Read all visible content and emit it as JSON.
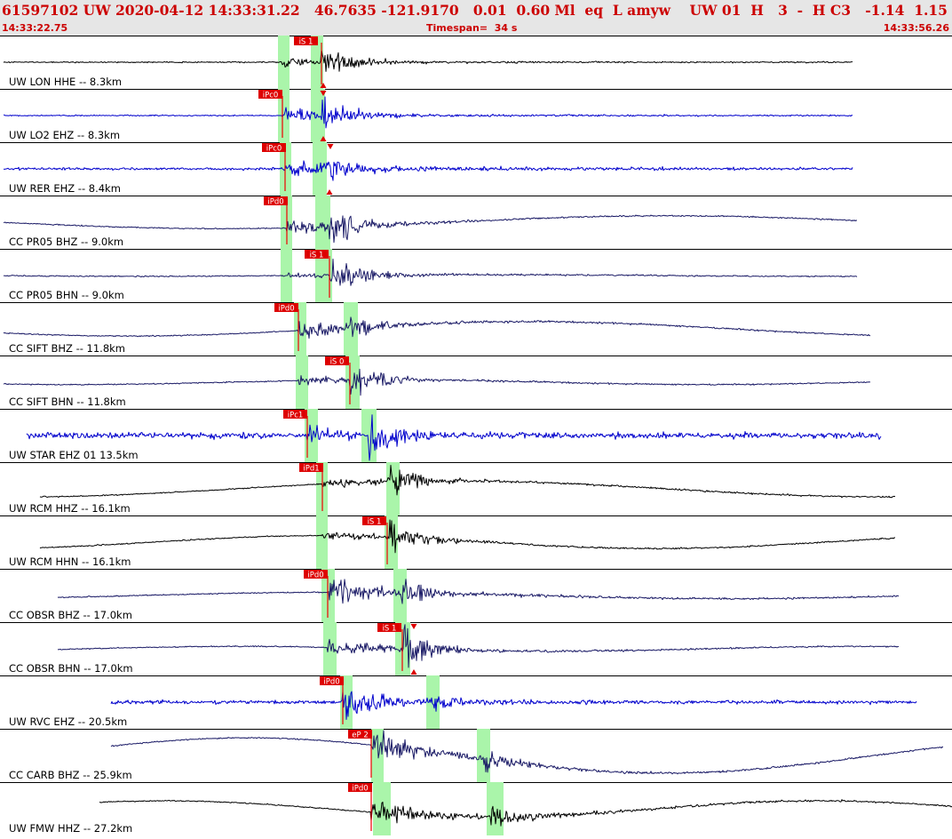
{
  "header": {
    "event_line": "61597102 UW 2020-04-12 14:33:31.22   46.7635 -121.9170   0.01  0.60 Ml  eq  L amyw    UW 01  H   3  -  H C3   -1.14  1.15",
    "start_time": "14:33:22.75",
    "timespan": "Timespan=  34 s",
    "end_time": "14:33:56.26"
  },
  "colors": {
    "panel_bg": "#ffffff",
    "header_bg": "#e6e6e6",
    "header_text": "#cc0000",
    "pick_box": "#dd0000",
    "pick_label": "#ffffff",
    "pick_line": "#ee0000",
    "window": "#aaf5aa",
    "black_trace": "#000000",
    "blue_trace": "#0000cc",
    "navy_trace": "#1a1a66"
  },
  "traces": [
    {
      "label": "UW LON HHE -- 8.3km",
      "color": "black",
      "picks": [
        {
          "text": "iS 1",
          "x": 362,
          "box": 331
        }
      ],
      "windows": [
        [
          313,
          326
        ],
        [
          350,
          364
        ]
      ],
      "marker": [
        {
          "x": 364,
          "dir": "up"
        }
      ],
      "start": 4,
      "end": 960,
      "onset": 318,
      "amp": 6,
      "pamp": 6,
      "samp": 20,
      "noise": 1,
      "lf": 0,
      "sx": 362
    },
    {
      "label": "UW LO2 EHZ -- 8.3km",
      "color": "blue",
      "picks": [
        {
          "text": "iPc0",
          "x": 318,
          "box": 291
        }
      ],
      "windows": [
        [
          313,
          326
        ],
        [
          350,
          366
        ]
      ],
      "marker": [
        {
          "x": 364,
          "dir": "down"
        },
        {
          "x": 364,
          "dir": "up"
        }
      ],
      "start": 4,
      "end": 960,
      "onset": 318,
      "amp": 8,
      "pamp": 8,
      "samp": 18,
      "noise": 1,
      "lf": 0,
      "sx": 363
    },
    {
      "label": "UW RER EHZ -- 8.4km",
      "color": "blue",
      "picks": [
        {
          "text": "iPc0",
          "x": 321,
          "box": 295
        }
      ],
      "windows": [
        [
          315,
          328
        ],
        [
          352,
          368
        ]
      ],
      "marker": [
        {
          "x": 372,
          "dir": "down"
        },
        {
          "x": 371,
          "dir": "up"
        }
      ],
      "start": 4,
      "end": 960,
      "onset": 321,
      "amp": 12,
      "pamp": 10,
      "samp": 16,
      "noise": 2,
      "lf": 0,
      "sx": 368
    },
    {
      "label": "CC PR05 BHZ -- 9.0km",
      "color": "navy",
      "picks": [
        {
          "text": "iPd0",
          "x": 323,
          "box": 297
        }
      ],
      "windows": [
        [
          316,
          329
        ],
        [
          355,
          372
        ]
      ],
      "marker": [],
      "start": 4,
      "end": 965,
      "onset": 323,
      "amp": 6,
      "pamp": 10,
      "samp": 25,
      "noise": 1,
      "lf": 8,
      "sx": 371
    },
    {
      "label": "CC PR05 BHN -- 9.0km",
      "color": "navy",
      "picks": [
        {
          "text": "iS 1",
          "x": 371,
          "box": 343
        }
      ],
      "windows": [
        [
          316,
          329
        ],
        [
          355,
          374
        ]
      ],
      "marker": [],
      "start": 4,
      "end": 965,
      "onset": 323,
      "amp": 6,
      "pamp": 4,
      "samp": 26,
      "noise": 1,
      "lf": 1,
      "sx": 372
    },
    {
      "label": "CC SIFT BHZ -- 11.8km",
      "color": "navy",
      "picks": [
        {
          "text": "iPd0",
          "x": 336,
          "box": 309
        }
      ],
      "windows": [
        [
          331,
          345
        ],
        [
          387,
          403
        ]
      ],
      "marker": [],
      "start": 4,
      "end": 980,
      "onset": 336,
      "amp": 8,
      "pamp": 12,
      "samp": 14,
      "noise": 1,
      "lf": 9,
      "sx": 395
    },
    {
      "label": "CC SIFT BHN -- 11.8km",
      "color": "navy",
      "picks": [
        {
          "text": "iS 0",
          "x": 394,
          "box": 366
        }
      ],
      "windows": [
        [
          333,
          347
        ],
        [
          389,
          405
        ]
      ],
      "marker": [],
      "start": 4,
      "end": 980,
      "onset": 336,
      "amp": 6,
      "pamp": 6,
      "samp": 22,
      "noise": 1,
      "lf": 3,
      "sx": 394
    },
    {
      "label": "UW STAR EHZ 01 13.5km",
      "color": "blue",
      "picks": [
        {
          "text": "iPc1",
          "x": 346,
          "box": 319
        }
      ],
      "windows": [
        [
          343,
          358
        ],
        [
          407,
          424
        ]
      ],
      "marker": [],
      "start": 30,
      "end": 992,
      "onset": 346,
      "amp": 10,
      "pamp": 8,
      "samp": 24,
      "noise": 5,
      "lf": 0,
      "sx": 415
    },
    {
      "label": "UW RCM HHZ -- 16.1km",
      "color": "black",
      "picks": [
        {
          "text": "iPd1",
          "x": 363,
          "box": 337
        }
      ],
      "windows": [
        [
          356,
          369
        ],
        [
          435,
          450
        ]
      ],
      "marker": [],
      "start": 45,
      "end": 1008,
      "onset": 363,
      "amp": 8,
      "pamp": 10,
      "samp": 20,
      "noise": 1,
      "lf": 10,
      "sx": 440
    },
    {
      "label": "UW RCM HHN -- 16.1km",
      "color": "black",
      "picks": [
        {
          "text": "iS 1",
          "x": 436,
          "box": 408
        }
      ],
      "windows": [
        [
          356,
          369
        ],
        [
          433,
          448
        ]
      ],
      "marker": [],
      "start": 45,
      "end": 1008,
      "onset": 363,
      "amp": 6,
      "pamp": 6,
      "samp": 20,
      "noise": 1,
      "lf": 8,
      "sx": 438
    },
    {
      "label": "CC OBSR BHZ -- 17.0km",
      "color": "navy",
      "picks": [
        {
          "text": "iPd0",
          "x": 369,
          "box": 342
        }
      ],
      "windows": [
        [
          362,
          377
        ],
        [
          443,
          458
        ]
      ],
      "marker": [],
      "start": 65,
      "end": 1012,
      "onset": 369,
      "amp": 10,
      "pamp": 18,
      "samp": 20,
      "noise": 1,
      "lf": 4,
      "sx": 452
    },
    {
      "label": "CC OBSR BHN -- 17.0km",
      "color": "navy",
      "picks": [
        {
          "text": "iS 1",
          "x": 453,
          "box": 425
        }
      ],
      "windows": [
        [
          364,
          379
        ],
        [
          445,
          462
        ]
      ],
      "marker": [
        {
          "x": 466,
          "dir": "down"
        },
        {
          "x": 466,
          "dir": "up"
        }
      ],
      "start": 65,
      "end": 1012,
      "onset": 369,
      "amp": 8,
      "pamp": 12,
      "samp": 24,
      "noise": 1,
      "lf": 3,
      "sx": 455
    },
    {
      "label": "UW RVC EHZ -- 20.5km",
      "color": "blue",
      "picks": [
        {
          "text": "iPd0",
          "x": 386,
          "box": 360
        }
      ],
      "windows": [
        [
          383,
          397
        ],
        [
          480,
          495
        ]
      ],
      "marker": [],
      "start": 125,
      "end": 1032,
      "onset": 386,
      "amp": 10,
      "pamp": 18,
      "samp": 10,
      "noise": 3,
      "lf": 0,
      "sx": 487
    },
    {
      "label": "CC CARB BHZ -- 25.9km",
      "color": "navy",
      "picks": [
        {
          "text": "eP 2",
          "x": 418,
          "box": 392
        }
      ],
      "windows": [
        [
          418,
          432
        ],
        [
          537,
          552
        ]
      ],
      "marker": [],
      "start": 125,
      "end": 1062,
      "onset": 418,
      "amp": 10,
      "pamp": 18,
      "samp": 14,
      "noise": 1,
      "lf": 22,
      "sx": 545
    },
    {
      "label": "UW FMW HHZ -- 27.2km",
      "color": "black",
      "picks": [
        {
          "text": "iPd0",
          "x": 418,
          "box": 392
        }
      ],
      "windows": [
        [
          420,
          440
        ],
        [
          548,
          567
        ]
      ],
      "marker": [],
      "start": 112,
      "end": 1072,
      "onset": 418,
      "amp": 12,
      "pamp": 14,
      "samp": 18,
      "noise": 1,
      "lf": 10,
      "sx": 553
    }
  ]
}
